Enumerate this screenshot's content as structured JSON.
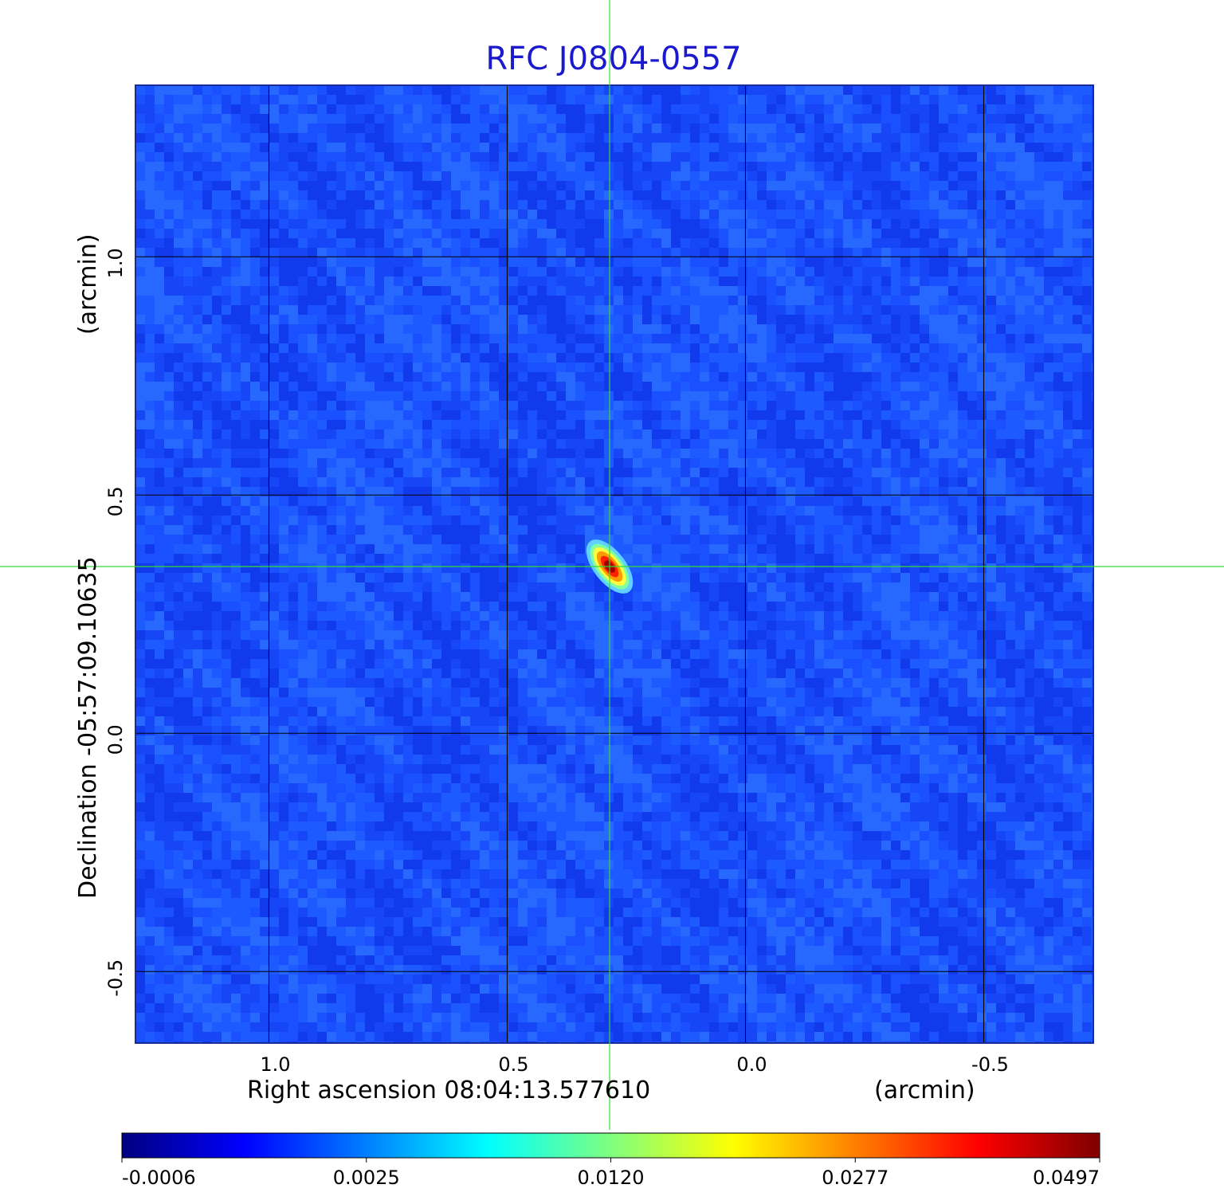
{
  "chart_data": {
    "type": "heatmap",
    "title": "RFC J0804-0557",
    "xlabel": "Right ascension  08:04:13.577610",
    "xunit": "(arcmin)",
    "ylabel": "Declination  -05:57:09.10635",
    "yunit": "(arcmin)",
    "x_ticks": [
      1.0,
      0.5,
      0.0,
      -0.5
    ],
    "x_tick_labels": [
      "1.0",
      "0.5",
      "0.0",
      "-0.5"
    ],
    "y_ticks": [
      1.0,
      0.5,
      0.0,
      -0.5
    ],
    "y_tick_labels": [
      "1.0",
      "0.5",
      "0.0",
      "-0.5"
    ],
    "xlim": [
      1.28,
      -0.73
    ],
    "ylim": [
      -0.65,
      1.36
    ],
    "x_reversed": true,
    "grid": true,
    "grid_color": "#000000",
    "crosshair": {
      "x": 0.285,
      "y": 0.35,
      "color": "#33dd33"
    },
    "source": {
      "x": 0.285,
      "y": 0.35,
      "peak": 0.0497
    },
    "background_level": 0.0001,
    "colorbar": {
      "colormap": "jet",
      "tick_labels": [
        "-0.0006",
        "0.0025",
        "0.0120",
        "0.0277",
        "0.0497"
      ],
      "min": -0.0006,
      "max": 0.0497
    },
    "colors": {
      "title": "#1a1acc",
      "bg_field": "#1a50ff",
      "jet": [
        "#00007f",
        "#0000ff",
        "#007fff",
        "#00ffff",
        "#7fff7f",
        "#ffff00",
        "#ff7f00",
        "#ff0000",
        "#7f0000"
      ]
    }
  }
}
